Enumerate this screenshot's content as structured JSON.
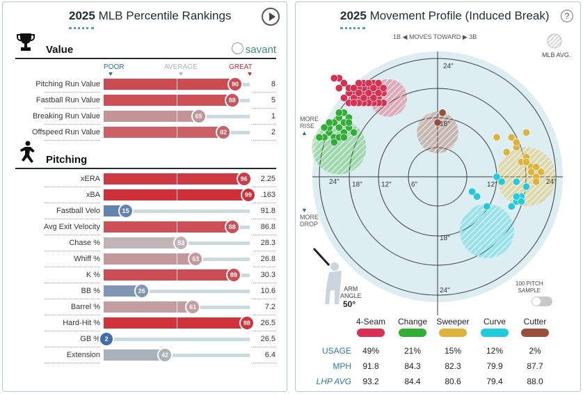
{
  "left_panel": {
    "title_year": "2025",
    "title_rest": "MLB Percentile Rankings",
    "scale_labels": {
      "poor": "POOR",
      "average": "AVERAGE",
      "great": "GREAT"
    },
    "value_section": {
      "heading": "Value",
      "brand": "savant"
    },
    "pitching_section": {
      "heading": "Pitching"
    }
  },
  "right_panel": {
    "title_year": "2025",
    "title_rest": "Movement Profile (Induced Break)",
    "help_label": "?",
    "direction": {
      "left": "1B",
      "mid": "MOVES TOWARD",
      "right": "3B"
    },
    "legend_label": "MLB AVG.",
    "more_rise": [
      "MORE",
      "RISE"
    ],
    "more_drop": [
      "MORE",
      "DROP"
    ],
    "arm_angle_label": [
      "ARM",
      "ANGLE"
    ],
    "arm_angle_value": "50°",
    "sample_label": [
      "100 PITCH",
      "SAMPLE"
    ],
    "row_labels": {
      "usage": "USAGE",
      "mph": "MPH",
      "avg": "LHP AVG"
    }
  },
  "colors": {
    "great": "#d22d36",
    "poor": "#3a6aad",
    "four_seam": "#d92f50",
    "changeup": "#2fb034",
    "sweeper": "#ddb33a",
    "curve": "#1fcbdc",
    "cutter": "#9a4f3a",
    "avg_fill": "#d6ebef"
  },
  "chart_data": [
    {
      "type": "bar",
      "title": "2025 MLB Percentile Rankings",
      "scale": {
        "min": 0,
        "max": 100
      },
      "groups": [
        {
          "name": "Value",
          "metrics": [
            {
              "label": "Pitching Run Value",
              "percentile": 90,
              "value": "8"
            },
            {
              "label": "Fastball Run Value",
              "percentile": 88,
              "value": "5"
            },
            {
              "label": "Breaking Run Value",
              "percentile": 65,
              "value": "1"
            },
            {
              "label": "Offspeed Run Value",
              "percentile": 82,
              "value": "2"
            }
          ]
        },
        {
          "name": "Pitching",
          "metrics": [
            {
              "label": "xERA",
              "percentile": 96,
              "value": "2.25"
            },
            {
              "label": "xBA",
              "percentile": 99,
              "value": ".163"
            },
            {
              "label": "Fastball Velo",
              "percentile": 15,
              "value": "91.8"
            },
            {
              "label": "Avg Exit Velocity",
              "percentile": 88,
              "value": "86.8"
            },
            {
              "label": "Chase %",
              "percentile": 53,
              "value": "28.3"
            },
            {
              "label": "Whiff %",
              "percentile": 63,
              "value": "26.8"
            },
            {
              "label": "K %",
              "percentile": 89,
              "value": "30.3"
            },
            {
              "label": "BB %",
              "percentile": 26,
              "value": "10.6"
            },
            {
              "label": "Barrel %",
              "percentile": 61,
              "value": "7.2"
            },
            {
              "label": "Hard-Hit %",
              "percentile": 98,
              "value": "26.5"
            },
            {
              "label": "GB %",
              "percentile": 2,
              "value": "26.5"
            },
            {
              "label": "Extension",
              "percentile": 42,
              "value": "6.4"
            }
          ]
        }
      ]
    },
    {
      "type": "scatter",
      "title": "2025 Movement Profile (Induced Break)",
      "radial_labels": [
        "6\"",
        "12\"",
        "18\"",
        "24\""
      ],
      "xlim": [
        -24,
        24
      ],
      "ylim": [
        -24,
        24
      ],
      "pitches": [
        {
          "name": "4-Seam",
          "usage": "49%",
          "mph": "91.8",
          "lhp_avg": "93.2",
          "color": "#d92f50",
          "avg_center": [
            10,
            16
          ],
          "avg_radius": 3.8,
          "points": [
            [
              11,
              17
            ],
            [
              12,
              16
            ],
            [
              13,
              17
            ],
            [
              14,
              16
            ],
            [
              15,
              17
            ],
            [
              12,
              18
            ],
            [
              13,
              19
            ],
            [
              14,
              18
            ],
            [
              16,
              16
            ],
            [
              17,
              17
            ],
            [
              11,
              15
            ],
            [
              12,
              15
            ],
            [
              13,
              15
            ],
            [
              14,
              15
            ],
            [
              15,
              15
            ],
            [
              16,
              15
            ],
            [
              13,
              16
            ],
            [
              14,
              17
            ],
            [
              15,
              18
            ],
            [
              16,
              18
            ],
            [
              17,
              16
            ],
            [
              18,
              17
            ],
            [
              18,
              18
            ],
            [
              19,
              19
            ],
            [
              20,
              20
            ],
            [
              21,
              20
            ],
            [
              20,
              18
            ],
            [
              12,
              19
            ],
            [
              15,
              19
            ],
            [
              16,
              19
            ],
            [
              17,
              18
            ],
            [
              11,
              18
            ],
            [
              14,
              19
            ],
            [
              18,
              15
            ],
            [
              19,
              16
            ],
            [
              13,
              18
            ],
            [
              15,
              16
            ],
            [
              17,
              15
            ],
            [
              16,
              17
            ],
            [
              12,
              17
            ]
          ]
        },
        {
          "name": "Change",
          "usage": "21%",
          "mph": "84.3",
          "lhp_avg": "84.4",
          "color": "#2fb034",
          "avg_center": [
            20,
            6
          ],
          "avg_radius": 5.5,
          "points": [
            [
              19,
              13
            ],
            [
              20,
              12
            ],
            [
              18,
              12
            ],
            [
              21,
              11
            ],
            [
              19,
              11
            ],
            [
              18,
              10
            ],
            [
              20,
              10
            ],
            [
              22,
              9
            ],
            [
              23,
              8
            ],
            [
              21,
              8
            ],
            [
              19,
              9
            ],
            [
              22,
              10
            ],
            [
              24,
              8
            ],
            [
              20,
              8
            ],
            [
              21,
              7
            ],
            [
              19,
              8
            ],
            [
              22,
              11
            ],
            [
              18,
              11
            ],
            [
              20,
              13
            ],
            [
              23,
              10
            ],
            [
              17,
              9
            ]
          ]
        },
        {
          "name": "Sweeper",
          "usage": "15%",
          "mph": "82.3",
          "lhp_avg": "80.6",
          "color": "#ddb33a",
          "avg_center": [
            -18,
            0
          ],
          "avg_radius": 6,
          "points": [
            [
              -14,
              5
            ],
            [
              -12,
              8
            ],
            [
              -18,
              9
            ],
            [
              -15,
              8
            ],
            [
              -16,
              6
            ],
            [
              -18,
              4
            ],
            [
              -19,
              2
            ],
            [
              -20,
              2
            ],
            [
              -21,
              1
            ],
            [
              -20,
              0
            ],
            [
              -19,
              1
            ],
            [
              -16,
              7
            ],
            [
              -17,
              3
            ],
            [
              -18,
              3
            ],
            [
              -20,
              -1
            ]
          ]
        },
        {
          "name": "Curve",
          "usage": "12%",
          "mph": "79.9",
          "lhp_avg": "79.4",
          "color": "#1fcbdc",
          "avg_center": [
            -10,
            -11
          ],
          "avg_radius": 5.5,
          "points": [
            [
              -13,
              -1
            ],
            [
              -12,
              0
            ],
            [
              -16,
              -5
            ],
            [
              -17,
              -4
            ],
            [
              -18,
              -2
            ],
            [
              -16,
              -4
            ],
            [
              -8,
              -4
            ],
            [
              -10,
              -6
            ],
            [
              -15,
              -6
            ],
            [
              -17,
              -5
            ],
            [
              -16,
              -1
            ],
            [
              -7,
              -3
            ]
          ]
        },
        {
          "name": "Cutter",
          "usage": "2%",
          "mph": "87.7",
          "lhp_avg": "88.0",
          "color": "#9a4f3a",
          "avg_center": [
            0,
            9
          ],
          "avg_radius": 4.2,
          "points": [
            [
              -1,
              13
            ],
            [
              0,
              11
            ]
          ]
        }
      ]
    }
  ]
}
